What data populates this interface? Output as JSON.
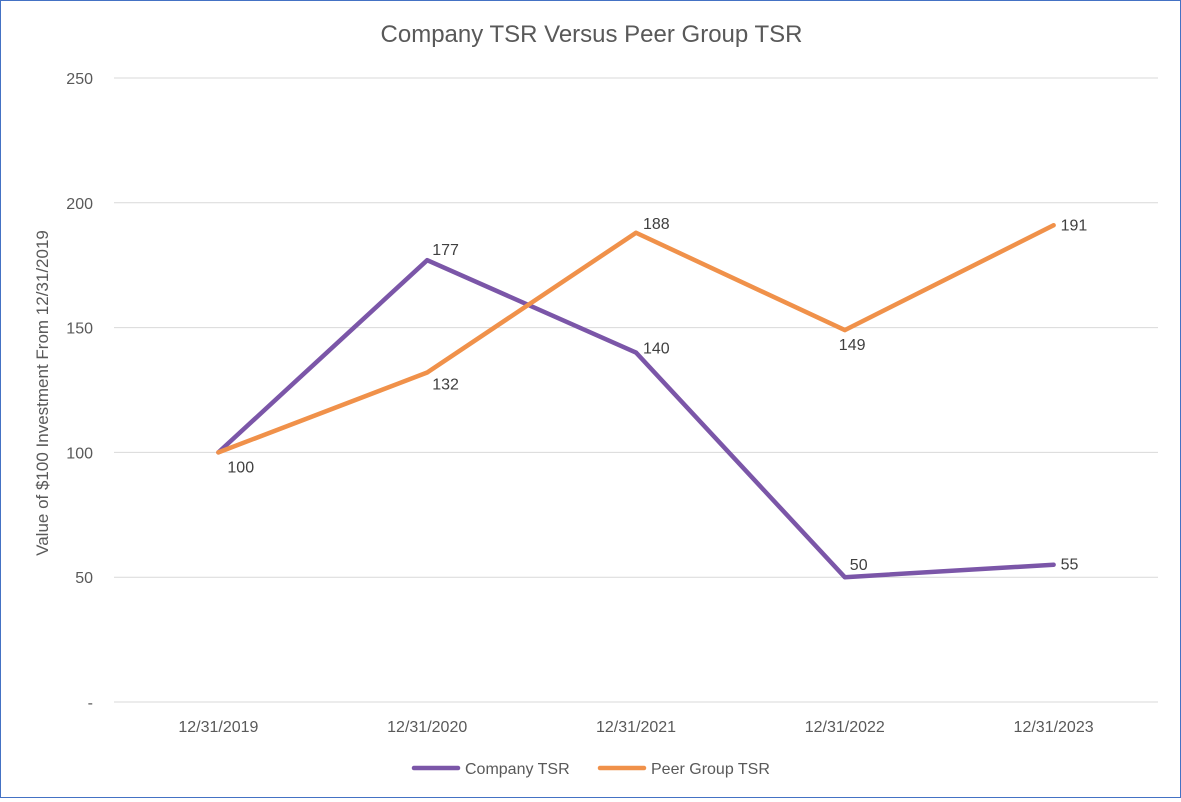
{
  "chart_data": {
    "type": "line",
    "title": "Company TSR Versus Peer Group TSR",
    "xlabel": "",
    "ylabel": "Value of $100 Investment From 12/31/2019",
    "categories": [
      "12/31/2019",
      "12/31/2020",
      "12/31/2021",
      "12/31/2022",
      "12/31/2023"
    ],
    "ylim": [
      0,
      250
    ],
    "yticks": [
      0,
      50,
      100,
      150,
      200,
      250
    ],
    "ytick_labels": [
      "-",
      "50",
      "100",
      "150",
      "200",
      "250"
    ],
    "grid": true,
    "legend_position": "bottom",
    "series": [
      {
        "name": "Company TSR",
        "color": "#7b56a8",
        "values": [
          100,
          177,
          140,
          50,
          55
        ],
        "labels": [
          "",
          "177",
          "140",
          "50",
          "55"
        ]
      },
      {
        "name": "Peer Group TSR",
        "color": "#f0914a",
        "values": [
          100,
          132,
          188,
          149,
          191
        ],
        "labels": [
          "100",
          "132",
          "188",
          "149",
          "191"
        ]
      }
    ]
  }
}
